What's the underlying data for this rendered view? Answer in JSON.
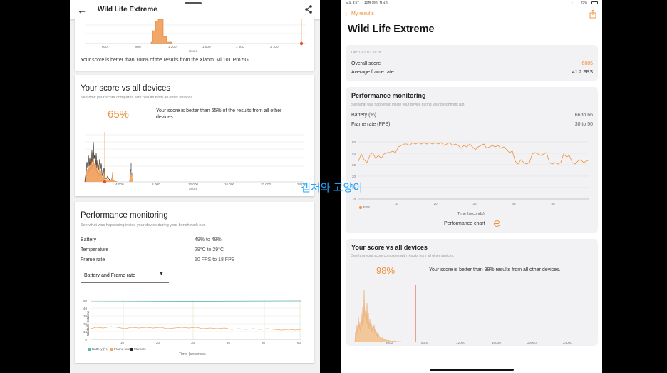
{
  "overlay_text": "캡처와 고양이",
  "left": {
    "app_bar": {
      "title": "Wild Life Extreme"
    },
    "top_chart": {
      "ticks": [
        "600",
        "900",
        "1 200",
        "1 500",
        "1 800",
        "2 100"
      ],
      "xlabel": "Score",
      "caption": "Your score is better than 100% of the results from the Xiaomi Mi 10T Pro 5G."
    },
    "vs_card": {
      "title": "Your score vs all devices",
      "subtitle": "See how your score compares with results from all other devices.",
      "percent": "65%",
      "desc_line1": "Your score is better than 65% of the results from all other",
      "desc_line2": "devices.",
      "ticks": [
        "4 000",
        "8 000",
        "12 000",
        "16 000",
        "20 000",
        "24 0"
      ],
      "xlabel": "Score"
    },
    "perf_card": {
      "title": "Performance monitoring",
      "subtitle": "See what was happening inside your device during your benchmark run.",
      "rows": [
        {
          "label": "Battery",
          "value": "49% to 48%"
        },
        {
          "label": "Temperature",
          "value": "29°C to 29°C"
        },
        {
          "label": "Frame rate",
          "value": "10 FPS to 18 FPS"
        }
      ],
      "dropdown": "Battery and Frame rate",
      "chart": {
        "y_ticks": [
          "50",
          "40",
          "30",
          "20",
          "10",
          "0"
        ],
        "x_ticks": [
          "10",
          "20",
          "30",
          "40",
          "50",
          "60"
        ],
        "vlabel": "Wild Life Extreme",
        "xlabel": "Time (seconds)",
        "legend": [
          "Battery (%)",
          "Frame rate",
          "Markers"
        ]
      }
    }
  },
  "right": {
    "status_bar": {
      "time": "오후 8:57",
      "date": "12월 19일 월요일",
      "battery": "73%"
    },
    "nav": {
      "back_label": "My results"
    },
    "title": "Wild Life Extreme",
    "summary": {
      "date": "Dec 19 2022 16:08",
      "overall_label": "Overall score",
      "overall_value": "6885",
      "avg_label": "Average frame rate",
      "avg_value": "41.2 FPS"
    },
    "perf": {
      "title": "Performance monitoring",
      "subtitle": "See what was happening inside your device during your benchmark run.",
      "rows": [
        {
          "label": "Battery (%)",
          "value": "66 to 66"
        },
        {
          "label": "Frame rate (FPS)",
          "value": "30 to 50"
        }
      ],
      "chart": {
        "y_ticks": [
          "50",
          "40",
          "30",
          "20",
          "10",
          "0"
        ],
        "x_ticks": [
          "10",
          "20",
          "30",
          "40",
          "50"
        ],
        "legend": "FPS",
        "xlabel": "Time (seconds)"
      },
      "chart_link": "Performance chart"
    },
    "vs": {
      "title": "Your score vs all devices",
      "subtitle": "See how your score compares with results from all other devices.",
      "percent": "98%",
      "desc": "Your score is better than 98% results from all other devices.",
      "ticks": [
        "4000",
        "8000",
        "12000",
        "16000",
        "20000",
        "24000"
      ]
    }
  },
  "colors": {
    "accent": "#f0913a",
    "ios_orange": "#f0913a",
    "teal": "#5bb8b0",
    "red_marker": "#e0502a"
  }
}
